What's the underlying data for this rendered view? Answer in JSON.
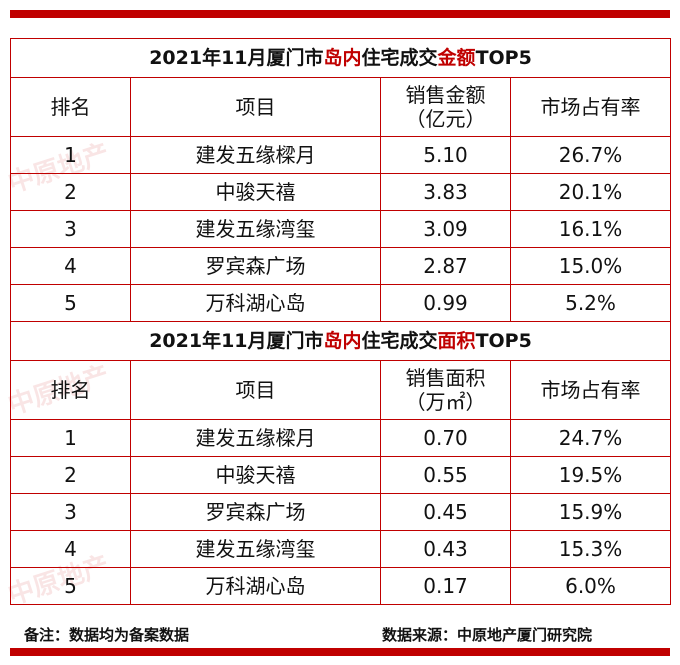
{
  "table1": {
    "title_pre": "2021年11月厦门市",
    "title_hl1": "岛内",
    "title_mid": "住宅成交",
    "title_hl2": "金额",
    "title_post": "TOP5",
    "headers": [
      "排名",
      "项目",
      "销售金额\n（亿元）",
      "市场占有率"
    ],
    "rows": [
      [
        "1",
        "建发五缘樑月",
        "5.10",
        "26.7%"
      ],
      [
        "2",
        "中骏天禧",
        "3.83",
        "20.1%"
      ],
      [
        "3",
        "建发五缘湾玺",
        "3.09",
        "16.1%"
      ],
      [
        "4",
        "罗宾森广场",
        "2.87",
        "15.0%"
      ],
      [
        "5",
        "万科湖心岛",
        "0.99",
        "5.2%"
      ]
    ]
  },
  "table2": {
    "title_pre": "2021年11月厦门市",
    "title_hl1": "岛内",
    "title_mid": "住宅成交",
    "title_hl2": "面积",
    "title_post": "TOP5",
    "headers": [
      "排名",
      "项目",
      "销售面积\n（万㎡）",
      "市场占有率"
    ],
    "rows": [
      [
        "1",
        "建发五缘樑月",
        "0.70",
        "24.7%"
      ],
      [
        "2",
        "中骏天禧",
        "0.55",
        "19.5%"
      ],
      [
        "3",
        "罗宾森广场",
        "0.45",
        "15.9%"
      ],
      [
        "4",
        "建发五缘湾玺",
        "0.43",
        "15.3%"
      ],
      [
        "5",
        "万科湖心岛",
        "0.17",
        "6.0%"
      ]
    ]
  },
  "footer": {
    "note": "备注：数据均为备案数据",
    "source": "数据来源：中原地产厦门研究院"
  },
  "watermark": "中原地产",
  "colors": {
    "accent": "#c00000"
  }
}
